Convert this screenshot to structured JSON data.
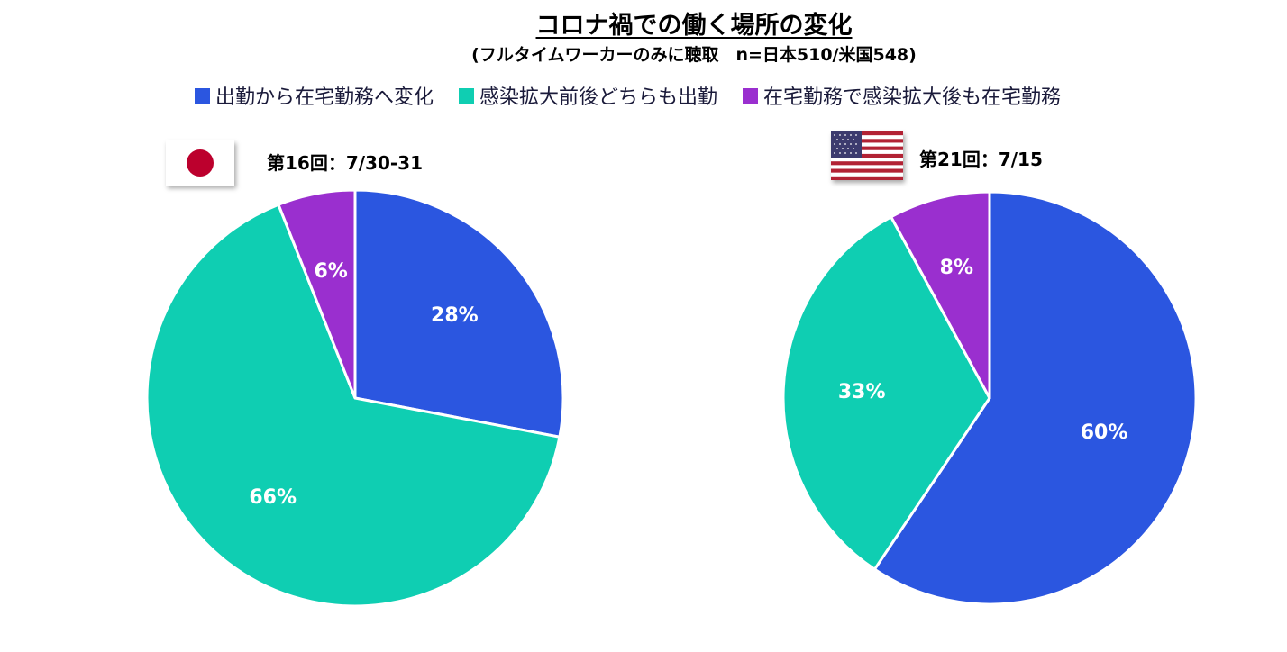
{
  "title": "コロナ禍での働く場所の変化",
  "subtitle": "(フルタイムワーカーのみに聴取　n=日本510/米国548)",
  "legend": [
    {
      "label": "出勤から在宅勤務へ変化",
      "color": "#2b56e0"
    },
    {
      "label": "感染拡大前後どちらも出勤",
      "color": "#0fceb2"
    },
    {
      "label": "在宅勤務で感染拡大後も在宅勤務",
      "color": "#9a2fcf"
    }
  ],
  "chart_data": [
    {
      "type": "pie",
      "title": "第16回：7/30-31",
      "flag": "japan-flag-icon",
      "categories": [
        "出勤から在宅勤務へ変化",
        "感染拡大前後どちらも出勤",
        "在宅勤務で感染拡大後も在宅勤務"
      ],
      "values": [
        28,
        66,
        6
      ],
      "labels": [
        "28%",
        "66%",
        "6%"
      ],
      "colors": [
        "#2b56e0",
        "#0fceb2",
        "#9a2fcf"
      ],
      "start": "12 o'clock",
      "direction": "clockwise"
    },
    {
      "type": "pie",
      "title": "第21回：7/15",
      "flag": "usa-flag-icon",
      "categories": [
        "出勤から在宅勤務へ変化",
        "感染拡大前後どちらも出勤",
        "在宅勤務で感染拡大後も在宅勤務"
      ],
      "values": [
        60,
        33,
        8
      ],
      "labels": [
        "60%",
        "33%",
        "8%"
      ],
      "colors": [
        "#2b56e0",
        "#0fceb2",
        "#9a2fcf"
      ],
      "start": "12 o'clock",
      "direction": "clockwise"
    }
  ]
}
